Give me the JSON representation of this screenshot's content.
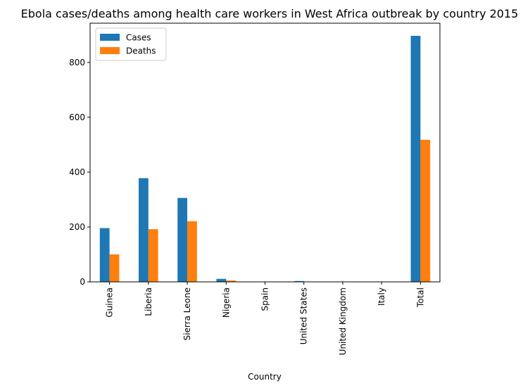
{
  "chart_data": {
    "type": "bar",
    "title": "Ebola cases/deaths among health care workers in West Africa outbreak by country 2015",
    "xlabel": "Country",
    "ylabel": "",
    "categories": [
      "Guinea",
      "Liberia",
      "Sierra Leone",
      "Nigeria",
      "Spain",
      "United States",
      "United Kingdom",
      "Italy",
      "Total"
    ],
    "series": [
      {
        "name": "Cases",
        "color": "#1f77b4",
        "values": [
          196,
          378,
          306,
          11,
          1,
          3,
          1,
          1,
          897
        ]
      },
      {
        "name": "Deaths",
        "color": "#ff7f0e",
        "values": [
          100,
          192,
          221,
          5,
          0,
          0,
          0,
          0,
          518
        ]
      }
    ],
    "ylim": [
      0,
      943
    ],
    "yticks": [
      0,
      200,
      400,
      600,
      800
    ],
    "grid": false,
    "legend_position": "top-left"
  }
}
